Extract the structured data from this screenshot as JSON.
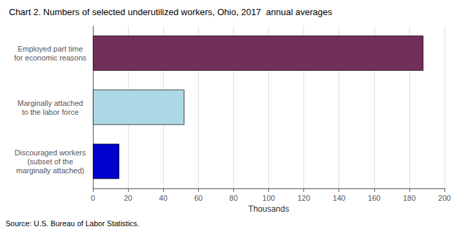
{
  "chart_data": {
    "type": "bar",
    "orientation": "horizontal",
    "title": "Chart 2. Numbers of selected underutilized workers, Ohio, 2017  annual averages",
    "categories": [
      "Discouraged workers\n(subset of the\nmarginally attached)",
      "Marginally attached\nto the labor force",
      "Employed part time\nfor economic reasons"
    ],
    "values": [
      15,
      52,
      188
    ],
    "colors": [
      "#0000cc",
      "#add8e6",
      "#722f5b"
    ],
    "xlabel": "Thousands",
    "xlim": [
      0,
      200
    ],
    "xticks": [
      0,
      20,
      40,
      60,
      80,
      100,
      120,
      140,
      160,
      180,
      200
    ],
    "grid": true,
    "annotations": [
      "Source: U.S. Bureau of Labor Statistics."
    ]
  }
}
